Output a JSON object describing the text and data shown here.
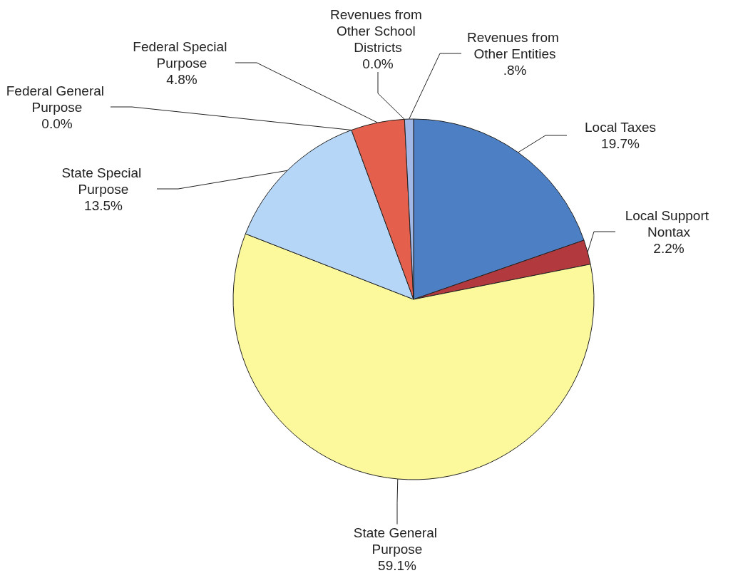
{
  "chart_data": {
    "type": "pie",
    "categories": [
      "Local Taxes",
      "Local Support Nontax",
      "State General Purpose",
      "State Special Purpose",
      "Federal General Purpose",
      "Federal Special Purpose",
      "Revenues from Other School Districts",
      "Revenues from Other Entities"
    ],
    "values": [
      19.7,
      2.2,
      59.1,
      13.5,
      0.0,
      4.8,
      0.0,
      0.8
    ],
    "value_labels": [
      "19.7%",
      "2.2%",
      "59.1%",
      "13.5%",
      "0.0%",
      "4.8%",
      "0.0%",
      ".8%"
    ],
    "colors": [
      "#4d7fc4",
      "#b23a3f",
      "#fcf99c",
      "#b5d6f6",
      "#c0504d",
      "#e5604c",
      "#9999ff",
      "#a2b8e6"
    ]
  }
}
